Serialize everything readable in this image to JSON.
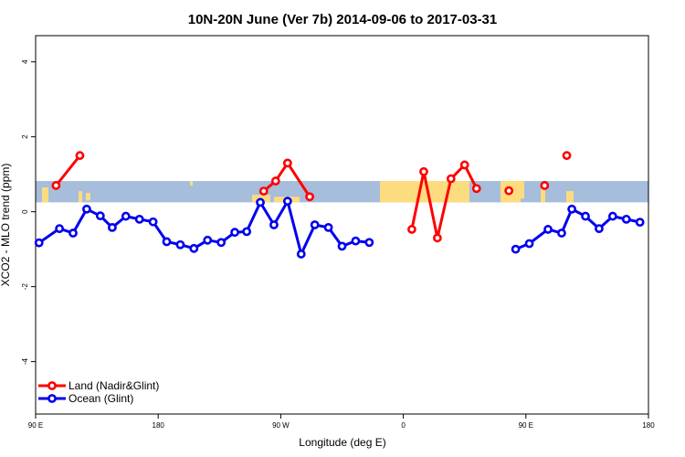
{
  "chart_data": {
    "type": "line",
    "title": "10N-20N June (Ver 7b)   2014-09-06 to 2017-03-31",
    "xlabel": "Longitude (deg E)",
    "ylabel": "XCO2 - MLO trend (ppm)",
    "xlim": [
      90,
      450
    ],
    "ylim": [
      -5.4,
      4.7
    ],
    "x_tick_values": [
      90,
      180,
      270,
      360,
      450,
      540
    ],
    "x_tick_labels": [
      "90 E",
      "180",
      "90 W",
      "0",
      "90 E",
      "180"
    ],
    "x_tick_positions": [
      90,
      162,
      234,
      306,
      378,
      450
    ],
    "y_ticks": [
      -4,
      -2,
      0,
      2,
      4
    ],
    "y_tick_labels": [
      "-4",
      "-2",
      "0",
      "2",
      "4"
    ],
    "grid": false,
    "legend_position": "bottom-left",
    "background_band": {
      "y_from": 0.25,
      "y_to": 0.82,
      "ocean_color": "#a6bddb",
      "land_color": "#fddc7f"
    },
    "series": [
      {
        "name": "Land (Nadir&Glint)",
        "color": "#ff0000",
        "segments": [
          [
            [
              102,
              0.7
            ],
            [
              116,
              1.5
            ]
          ],
          [
            [
              224,
              0.55
            ],
            [
              231,
              0.82
            ],
            [
              238,
              1.3
            ],
            [
              251,
              0.4
            ]
          ],
          [
            [
              311,
              -0.47
            ],
            [
              318,
              1.07
            ],
            [
              326,
              -0.7
            ],
            [
              334,
              0.88
            ],
            [
              342,
              1.25
            ],
            [
              349,
              0.62
            ]
          ],
          [
            [
              368,
              0.56
            ]
          ],
          [
            [
              389,
              0.7
            ]
          ],
          [
            [
              402,
              1.5
            ]
          ]
        ]
      },
      {
        "name": "Ocean (Glint)",
        "color": "#0000ee",
        "segments": [
          [
            [
              92,
              -0.83
            ],
            [
              104,
              -0.45
            ],
            [
              112,
              -0.57
            ],
            [
              120,
              0.07
            ],
            [
              128,
              -0.11
            ],
            [
              135,
              -0.42
            ],
            [
              143,
              -0.12
            ],
            [
              151,
              -0.2
            ],
            [
              159,
              -0.27
            ],
            [
              167,
              -0.8
            ],
            [
              175,
              -0.88
            ],
            [
              183,
              -0.98
            ],
            [
              191,
              -0.76
            ],
            [
              199,
              -0.82
            ],
            [
              207,
              -0.55
            ],
            [
              214,
              -0.53
            ],
            [
              222,
              0.25
            ],
            [
              230,
              -0.35
            ],
            [
              238,
              0.28
            ],
            [
              246,
              -1.13
            ],
            [
              254,
              -0.35
            ],
            [
              262,
              -0.42
            ],
            [
              270,
              -0.92
            ],
            [
              278,
              -0.78
            ],
            [
              286,
              -0.82
            ]
          ],
          [
            [
              372,
              -1.0
            ],
            [
              380,
              -0.85
            ],
            [
              391,
              -0.47
            ],
            [
              399,
              -0.57
            ],
            [
              405,
              0.07
            ],
            [
              413,
              -0.12
            ],
            [
              421,
              -0.45
            ],
            [
              429,
              -0.12
            ],
            [
              437,
              -0.2
            ],
            [
              445,
              -0.28
            ]
          ]
        ]
      }
    ]
  }
}
